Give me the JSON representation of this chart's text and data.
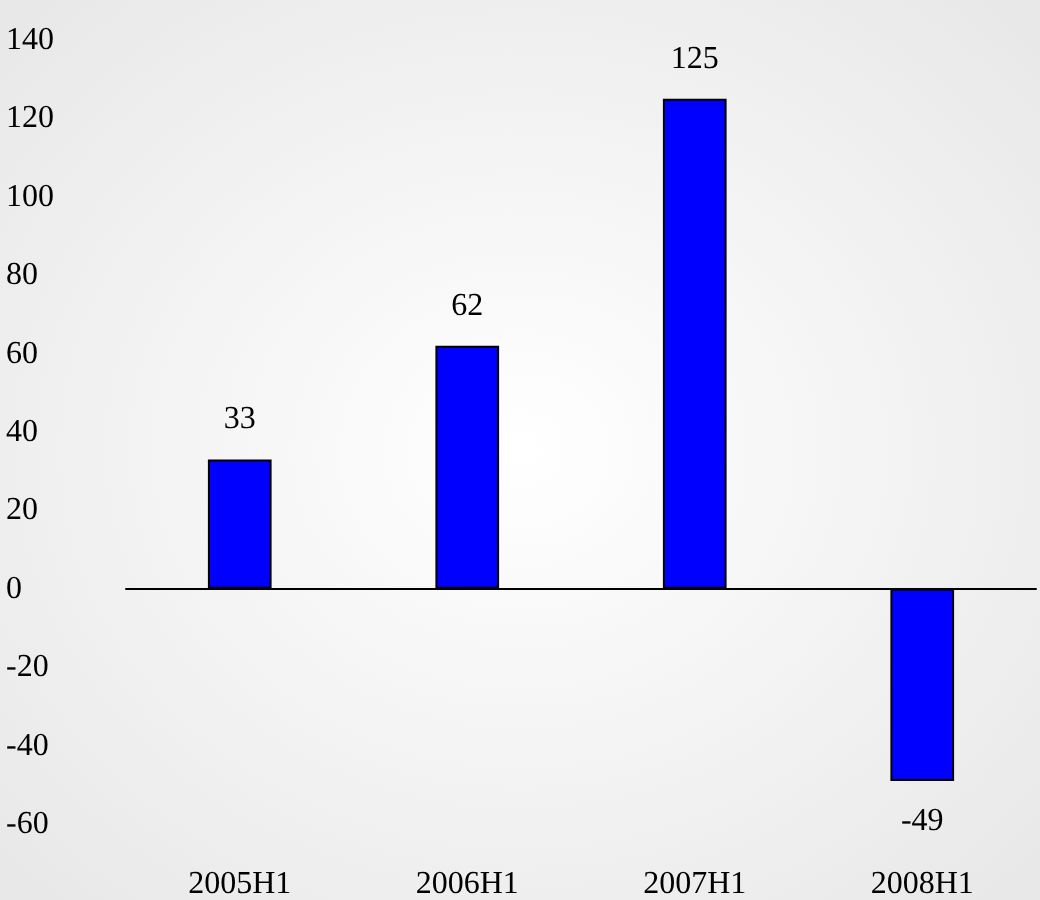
{
  "chart_data": {
    "type": "bar",
    "categories": [
      "2005H1",
      "2006H1",
      "2007H1",
      "2008H1"
    ],
    "values": [
      33,
      62,
      125,
      -49
    ],
    "color": "#0000ff",
    "ylim": [
      -60,
      140
    ],
    "yticks": [
      -60,
      -40,
      -20,
      0,
      20,
      40,
      60,
      80,
      100,
      120,
      140
    ],
    "data_labels": true
  }
}
